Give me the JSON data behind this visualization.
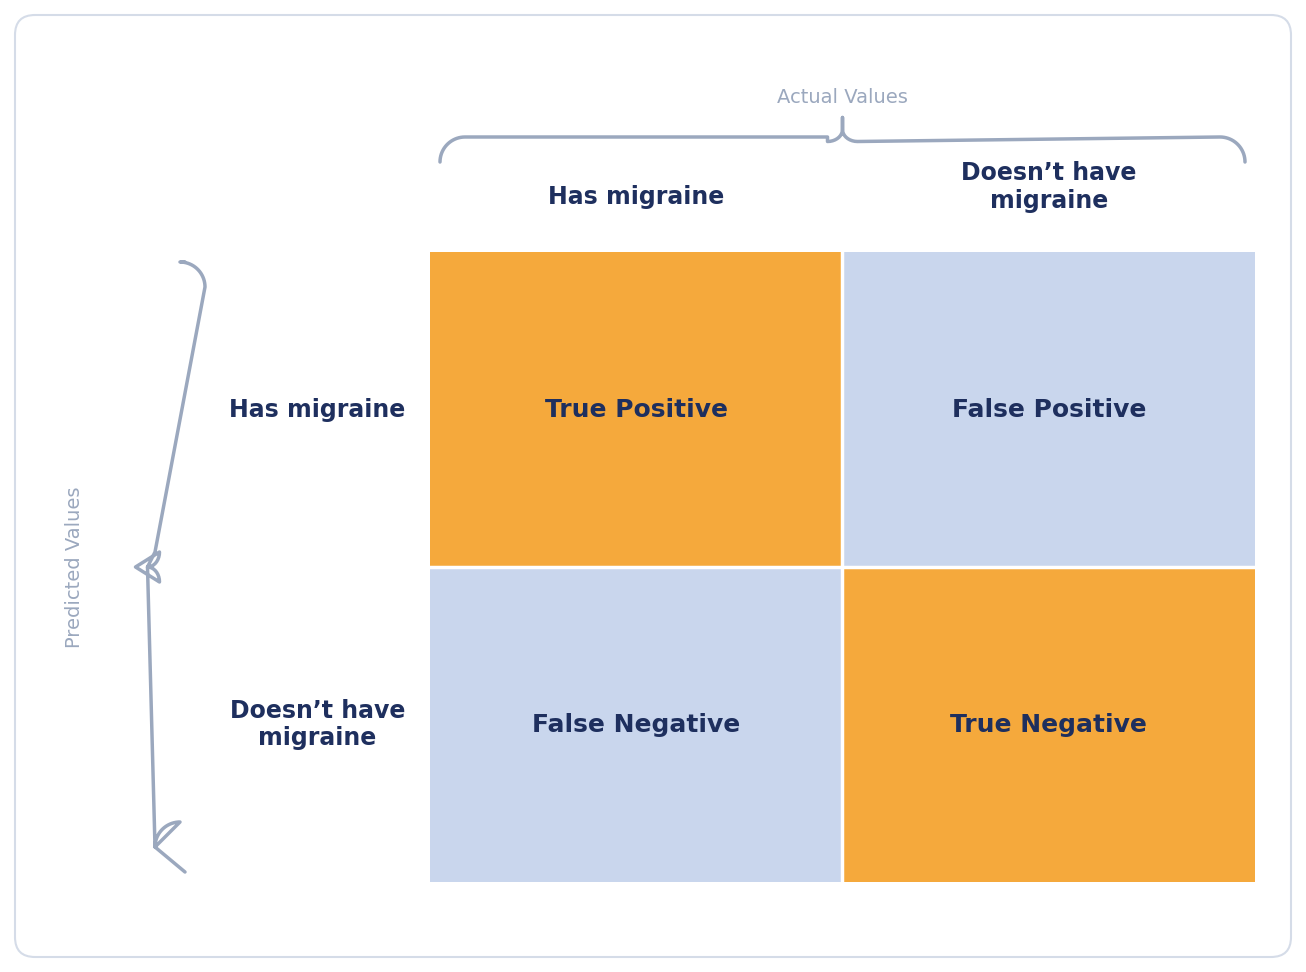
{
  "title_actual": "Actual Values",
  "title_predicted": "Predicted Values",
  "col_labels": [
    "Has migraine",
    "Doesn’t have\nmigraine"
  ],
  "row_labels": [
    "Has migraine",
    "Doesn’t have\nmigraine"
  ],
  "cell_labels": [
    [
      "True Positive",
      "False Positive"
    ],
    [
      "False Negative",
      "True Negative"
    ]
  ],
  "cell_colors": [
    [
      "#F5A93C",
      "#C9D6ED"
    ],
    [
      "#C9D6ED",
      "#F5A93C"
    ]
  ],
  "bg_color": "#FFFFFF",
  "card_bg": "#FFFFFF",
  "text_color_dark": "#1E2F5E",
  "text_color_label": "#9BA8BE",
  "border_color": "#D5DCE8",
  "cell_text_fontsize": 18,
  "col_label_fontsize": 17,
  "row_label_fontsize": 17,
  "axis_label_fontsize": 14
}
